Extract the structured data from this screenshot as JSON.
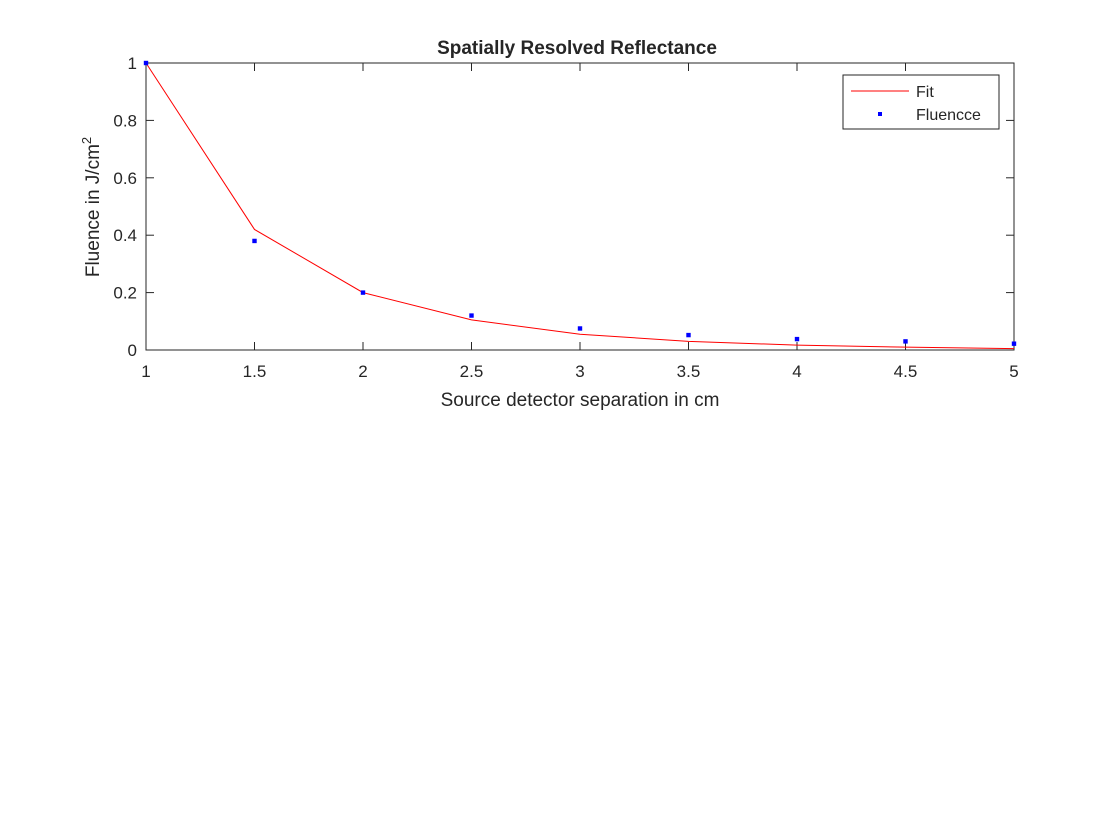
{
  "chart_data": {
    "type": "line",
    "title": "Spatially Resolved Reflectance",
    "xlabel": "Source detector separation in cm",
    "ylabel": {
      "text": "Fluence in J/cm",
      "superscript": "2"
    },
    "xlim": [
      1,
      5
    ],
    "ylim": [
      0,
      1
    ],
    "x_ticks": [
      "1",
      "1.5",
      "2",
      "2.5",
      "3",
      "3.5",
      "4",
      "4.5",
      "5"
    ],
    "y_ticks": [
      "0",
      "0.2",
      "0.4",
      "0.6",
      "0.8",
      "1"
    ],
    "grid": false,
    "legend_position": "top-right",
    "series": [
      {
        "name": "Fit",
        "style": "line",
        "color": "#ff0000",
        "x": [
          1,
          1.5,
          2,
          2.5,
          3,
          3.5,
          4,
          4.5,
          5
        ],
        "y": [
          1.0,
          0.42,
          0.2,
          0.105,
          0.055,
          0.03,
          0.017,
          0.01,
          0.005
        ]
      },
      {
        "name": "Fluencce",
        "style": "markers",
        "color": "#0000ff",
        "x": [
          1,
          1.5,
          2,
          2.5,
          3,
          3.5,
          4,
          4.5,
          5
        ],
        "y": [
          1.0,
          0.38,
          0.2,
          0.12,
          0.075,
          0.052,
          0.038,
          0.03,
          0.022
        ]
      }
    ]
  }
}
